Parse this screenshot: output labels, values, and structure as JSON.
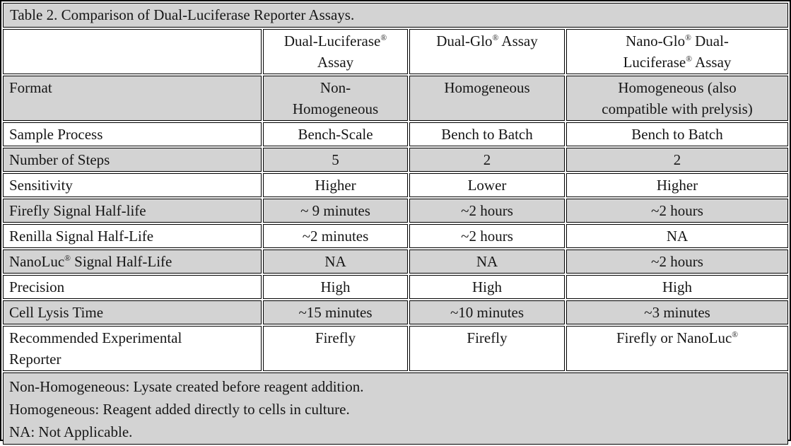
{
  "title": "Table 2. Comparison of Dual-Luciferase Reporter Assays.",
  "colors": {
    "shaded_row": "#d3d3d3",
    "border": "#000000",
    "plain_row": "#ffffff"
  },
  "header": {
    "col1": "Dual-Luciferase®\nAssay",
    "col2": "Dual-Glo® Assay",
    "col3": "Nano-Glo® Dual-\nLuciferase® Assay"
  },
  "rows": [
    {
      "label": "Format",
      "values": [
        "Non-\nHomogeneous",
        "Homogeneous",
        "Homogeneous (also\ncompatible with prelysis)"
      ]
    },
    {
      "label": "Sample Process",
      "values": [
        "Bench-Scale",
        "Bench to Batch",
        "Bench to Batch"
      ]
    },
    {
      "label": "Number of Steps",
      "values": [
        "5",
        "2",
        "2"
      ]
    },
    {
      "label": "Sensitivity",
      "values": [
        "Higher",
        "Lower",
        "Higher"
      ]
    },
    {
      "label": "Firefly Signal Half-life",
      "values": [
        "~ 9 minutes",
        "~2 hours",
        "~2 hours"
      ]
    },
    {
      "label": "Renilla Signal Half-Life",
      "values": [
        "~2 minutes",
        "~2 hours",
        "NA"
      ]
    },
    {
      "label": "NanoLuc® Signal Half-Life",
      "values": [
        "NA",
        "NA",
        "~2 hours"
      ]
    },
    {
      "label": "Precision",
      "values": [
        "High",
        "High",
        "High"
      ]
    },
    {
      "label": "Cell Lysis Time",
      "values": [
        "~15 minutes",
        "~10 minutes",
        "~3 minutes"
      ]
    },
    {
      "label": "Recommended Experimental\nReporter",
      "values": [
        "Firefly",
        "Firefly",
        "Firefly or NanoLuc®"
      ]
    }
  ],
  "footnotes": {
    "line1": "Non-Homogeneous: Lysate created before reagent addition.",
    "line2": "Homogeneous: Reagent added directly to cells in culture.",
    "line3": "NA: Not Applicable."
  }
}
